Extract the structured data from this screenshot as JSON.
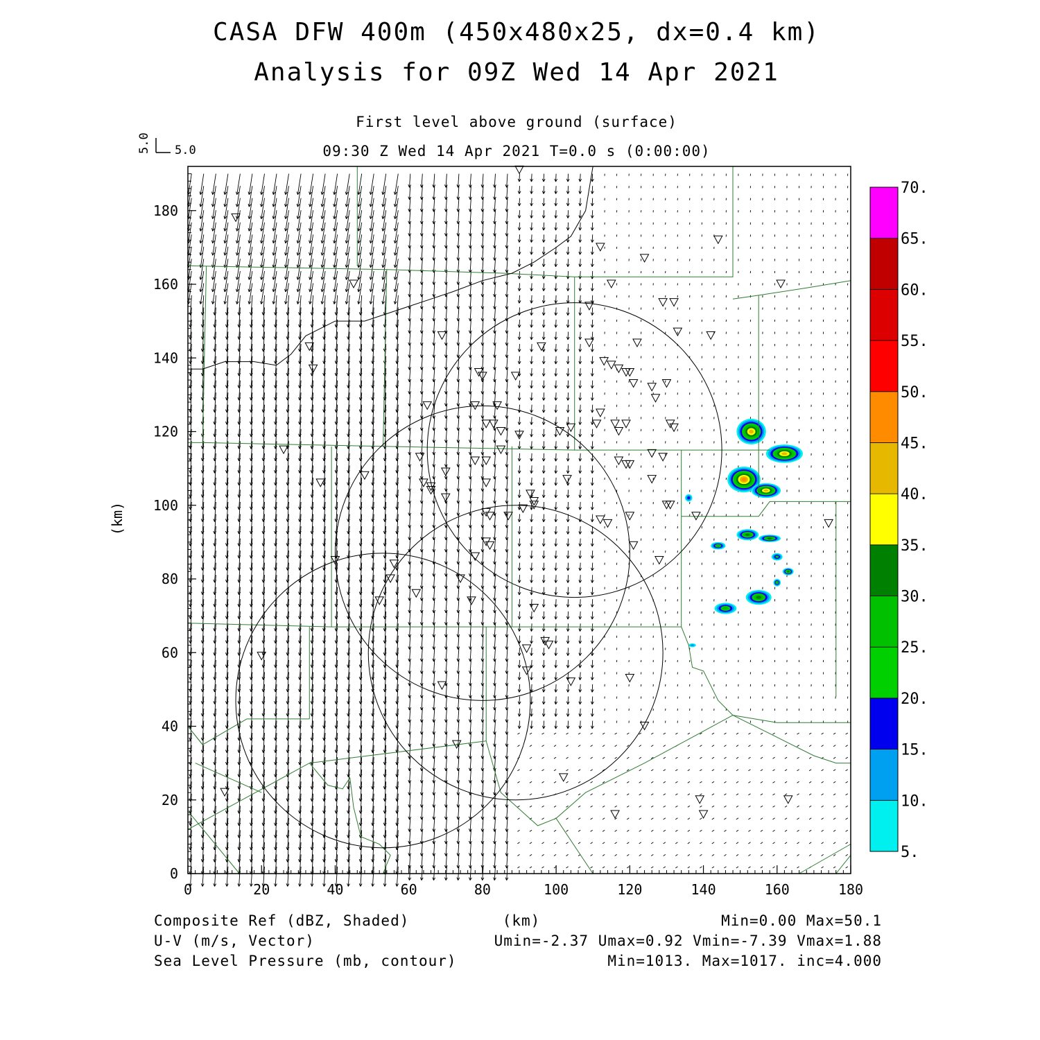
{
  "title": {
    "line1": "CASA DFW 400m (450x480x25, dx=0.4 km)",
    "line2": "Analysis for 09Z Wed 14 Apr 2021"
  },
  "subtitle": {
    "level": "First level above ground (surface)",
    "time": "09:30 Z Wed 14 Apr 2021   T=0.0 s (0:00:00)"
  },
  "vector_key": {
    "u_label": "5.0",
    "v_label": "5.0"
  },
  "axes": {
    "ylabel": "(km)",
    "xlabel": "(km)",
    "xlim": [
      0,
      180
    ],
    "ylim": [
      0,
      192
    ],
    "xticks": [
      "0",
      "20",
      "40",
      "60",
      "80",
      "100",
      "120",
      "140",
      "160",
      "180"
    ],
    "yticks": [
      "0",
      "20",
      "40",
      "60",
      "80",
      "100",
      "120",
      "140",
      "160",
      "180"
    ]
  },
  "colorbar": {
    "labels": [
      "5.",
      "10.",
      "15.",
      "20.",
      "25.",
      "30.",
      "35.",
      "40.",
      "45.",
      "50.",
      "55.",
      "60.",
      "65.",
      "70."
    ],
    "colors": [
      "#00f0f0",
      "#00a0f0",
      "#0000ee",
      "#00d000",
      "#00c000",
      "#008000",
      "#ffff00",
      "#e6b800",
      "#ff8c00",
      "#ff0000",
      "#dd0000",
      "#c00000",
      "#ff00ff"
    ]
  },
  "footer": {
    "left1": "Composite Ref (dBZ, Shaded)",
    "left2": "U-V (m/s, Vector)",
    "left3": "Sea Level Pressure (mb, contour)",
    "center_unit": "(km)",
    "right1": "Min=0.00 Max=50.1",
    "right2": "Umin=-2.37 Umax=0.92 Vmin=-7.39 Vmax=1.88",
    "right3": "Min=1013. Max=1017. inc=4.000"
  },
  "chart_data": {
    "type": "map",
    "title": "CASA DFW 400m (450x480x25, dx=0.4 km)",
    "subtitle": "Analysis for 09Z Wed 14 Apr 2021",
    "fields": {
      "shaded": "Composite Ref (dBZ, Shaded)",
      "vector": "U-V (m/s, Vector)",
      "contour": "Sea Level Pressure (mb, contour)"
    },
    "reflectivity_range": [
      0.0,
      50.1
    ],
    "u_range": [
      -2.37,
      0.92
    ],
    "v_range": [
      -7.39,
      1.88
    ],
    "slp_range": [
      1013,
      1017
    ],
    "slp_inc": 4.0,
    "radar_rings": [
      {
        "center_km": [
          105,
          115
        ],
        "radius_km": 40
      },
      {
        "center_km": [
          80,
          87
        ],
        "radius_km": 40
      },
      {
        "center_km": [
          89,
          60
        ],
        "radius_km": 40
      },
      {
        "center_km": [
          53,
          47
        ],
        "radius_km": 40
      }
    ],
    "slp_contour_km": [
      [
        0,
        137
      ],
      [
        4,
        137
      ],
      [
        10,
        139
      ],
      [
        18,
        139
      ],
      [
        24,
        138
      ],
      [
        28,
        141
      ],
      [
        32,
        146
      ],
      [
        40,
        150
      ],
      [
        48,
        150
      ],
      [
        54,
        152
      ],
      [
        60,
        154
      ],
      [
        66,
        156
      ],
      [
        72,
        158
      ],
      [
        80,
        161
      ],
      [
        88,
        163
      ],
      [
        94,
        166
      ],
      [
        100,
        170
      ],
      [
        104,
        173
      ],
      [
        108,
        180
      ],
      [
        110,
        192
      ]
    ],
    "county_lines_km": [
      [
        [
          0,
          165
        ],
        [
          54,
          164
        ],
        [
          86,
          163
        ],
        [
          105,
          162
        ],
        [
          148,
          162
        ],
        [
          148,
          192
        ]
      ],
      [
        [
          148,
          156
        ],
        [
          155,
          157
        ],
        [
          168,
          159
        ],
        [
          180,
          161
        ]
      ],
      [
        [
          5,
          165
        ],
        [
          4,
          117
        ],
        [
          0,
          117
        ]
      ],
      [
        [
          54,
          164
        ],
        [
          53,
          116
        ]
      ],
      [
        [
          105,
          162
        ],
        [
          105,
          115
        ]
      ],
      [
        [
          4,
          117
        ],
        [
          53,
          116
        ],
        [
          105,
          115
        ],
        [
          158,
          115
        ]
      ],
      [
        [
          155,
          157
        ],
        [
          155,
          102
        ]
      ],
      [
        [
          46,
          165
        ],
        [
          46,
          192
        ]
      ],
      [
        [
          39,
          116
        ],
        [
          39,
          67
        ]
      ],
      [
        [
          88,
          116
        ],
        [
          88,
          67
        ]
      ],
      [
        [
          134,
          115
        ],
        [
          134,
          67
        ]
      ],
      [
        [
          0,
          68
        ],
        [
          39,
          67
        ],
        [
          88,
          67
        ],
        [
          134,
          67
        ]
      ],
      [
        [
          33,
          67
        ],
        [
          33,
          42
        ]
      ],
      [
        [
          16,
          42
        ],
        [
          33,
          42
        ]
      ],
      [
        [
          81,
          67
        ],
        [
          81,
          36
        ]
      ],
      [
        [
          134,
          97
        ],
        [
          148,
          97
        ],
        [
          155,
          97
        ],
        [
          158,
          101
        ],
        [
          176,
          101
        ],
        [
          180,
          101
        ]
      ],
      [
        [
          176,
          101
        ],
        [
          176,
          48
        ]
      ],
      [
        [
          0,
          40
        ],
        [
          4,
          35
        ],
        [
          16,
          42
        ]
      ],
      [
        [
          4,
          35
        ],
        [
          0,
          40
        ]
      ],
      [
        [
          0,
          12
        ],
        [
          33,
          30
        ],
        [
          81,
          36
        ]
      ],
      [
        [
          0,
          17
        ],
        [
          14,
          0
        ]
      ],
      [
        [
          2,
          30
        ],
        [
          20,
          22
        ]
      ],
      [
        [
          33,
          30
        ],
        [
          38,
          24
        ],
        [
          42,
          23
        ],
        [
          44,
          26
        ],
        [
          45,
          18
        ],
        [
          47,
          10
        ],
        [
          52,
          8
        ],
        [
          55,
          5
        ],
        [
          53,
          0
        ]
      ],
      [
        [
          81,
          36
        ],
        [
          85,
          22
        ],
        [
          95,
          13
        ],
        [
          100,
          15
        ],
        [
          108,
          22
        ],
        [
          124,
          30
        ],
        [
          148,
          43
        ],
        [
          158,
          38
        ],
        [
          170,
          32
        ],
        [
          176,
          30
        ],
        [
          180,
          30
        ]
      ],
      [
        [
          100,
          15
        ],
        [
          110,
          0
        ]
      ],
      [
        [
          134,
          67
        ],
        [
          136,
          62
        ],
        [
          137,
          56
        ],
        [
          140,
          55
        ],
        [
          144,
          47
        ],
        [
          148,
          43
        ],
        [
          160,
          41
        ],
        [
          180,
          41
        ]
      ],
      [
        [
          166,
          0
        ],
        [
          180,
          8
        ]
      ],
      [
        [
          176,
          0
        ],
        [
          180,
          5
        ]
      ]
    ],
    "sites_km": [
      [
        90,
        191
      ],
      [
        13,
        178
      ],
      [
        112,
        170
      ],
      [
        124,
        167
      ],
      [
        144,
        172
      ],
      [
        45,
        160
      ],
      [
        115,
        160
      ],
      [
        161,
        160
      ],
      [
        109,
        154
      ],
      [
        129,
        155
      ],
      [
        132,
        155
      ],
      [
        133,
        147
      ],
      [
        142,
        146
      ],
      [
        33,
        143
      ],
      [
        69,
        146
      ],
      [
        96,
        143
      ],
      [
        109,
        144
      ],
      [
        122,
        144
      ],
      [
        34,
        137
      ],
      [
        79,
        136
      ],
      [
        80,
        135
      ],
      [
        89,
        135
      ],
      [
        113,
        139
      ],
      [
        115,
        138
      ],
      [
        117,
        137
      ],
      [
        119,
        136
      ],
      [
        120,
        136
      ],
      [
        121,
        133
      ],
      [
        126,
        132
      ],
      [
        127,
        129
      ],
      [
        130,
        133
      ],
      [
        65,
        127
      ],
      [
        78,
        127
      ],
      [
        84,
        127
      ],
      [
        112,
        125
      ],
      [
        81,
        122
      ],
      [
        83,
        122
      ],
      [
        85,
        120
      ],
      [
        90,
        119
      ],
      [
        101,
        120
      ],
      [
        104,
        121
      ],
      [
        111,
        122
      ],
      [
        116,
        122
      ],
      [
        117,
        120
      ],
      [
        119,
        122
      ],
      [
        131,
        122
      ],
      [
        132,
        121
      ],
      [
        26,
        115
      ],
      [
        85,
        115
      ],
      [
        126,
        114
      ],
      [
        129,
        113
      ],
      [
        63,
        113
      ],
      [
        70,
        109
      ],
      [
        78,
        112
      ],
      [
        81,
        112
      ],
      [
        117,
        112
      ],
      [
        119,
        111
      ],
      [
        120,
        111
      ],
      [
        36,
        106
      ],
      [
        48,
        108
      ],
      [
        64,
        106
      ],
      [
        66,
        105
      ],
      [
        66,
        104
      ],
      [
        70,
        102
      ],
      [
        81,
        106
      ],
      [
        93,
        103
      ],
      [
        94,
        101
      ],
      [
        94,
        100
      ],
      [
        103,
        107
      ],
      [
        126,
        107
      ],
      [
        130,
        100
      ],
      [
        131,
        100
      ],
      [
        81,
        98
      ],
      [
        82,
        97
      ],
      [
        87,
        97
      ],
      [
        91,
        99
      ],
      [
        112,
        96
      ],
      [
        114,
        95
      ],
      [
        120,
        97
      ],
      [
        138,
        97
      ],
      [
        174,
        95
      ],
      [
        81,
        90
      ],
      [
        78,
        86
      ],
      [
        82,
        89
      ],
      [
        121,
        89
      ],
      [
        128,
        85
      ],
      [
        40,
        85
      ],
      [
        56,
        84
      ],
      [
        55,
        80
      ],
      [
        74,
        80
      ],
      [
        62,
        76
      ],
      [
        52,
        74
      ],
      [
        77,
        74
      ],
      [
        94,
        72
      ],
      [
        20,
        59
      ],
      [
        92,
        61
      ],
      [
        97,
        63
      ],
      [
        98,
        62
      ],
      [
        92,
        55
      ],
      [
        69,
        51
      ],
      [
        104,
        52
      ],
      [
        120,
        53
      ],
      [
        124,
        40
      ],
      [
        73,
        35
      ],
      [
        102,
        26
      ],
      [
        10,
        22
      ],
      [
        139,
        20
      ],
      [
        163,
        20
      ],
      [
        140,
        16
      ],
      [
        116,
        16
      ]
    ],
    "echoes_km": [
      {
        "center": [
          153,
          120
        ],
        "size": [
          8,
          7
        ],
        "peak_dbz": 40
      },
      {
        "center": [
          162,
          114
        ],
        "size": [
          10,
          5
        ],
        "peak_dbz": 40
      },
      {
        "center": [
          151,
          107
        ],
        "size": [
          9,
          7
        ],
        "peak_dbz": 45
      },
      {
        "center": [
          157,
          104
        ],
        "size": [
          8,
          4
        ],
        "peak_dbz": 40
      },
      {
        "center": [
          136,
          102
        ],
        "size": [
          2,
          2
        ],
        "peak_dbz": 15
      },
      {
        "center": [
          152,
          92
        ],
        "size": [
          6,
          3
        ],
        "peak_dbz": 30
      },
      {
        "center": [
          158,
          91
        ],
        "size": [
          6,
          2
        ],
        "peak_dbz": 30
      },
      {
        "center": [
          144,
          89
        ],
        "size": [
          4,
          2
        ],
        "peak_dbz": 25
      },
      {
        "center": [
          160,
          86
        ],
        "size": [
          3,
          2
        ],
        "peak_dbz": 20
      },
      {
        "center": [
          163,
          82
        ],
        "size": [
          3,
          2
        ],
        "peak_dbz": 30
      },
      {
        "center": [
          155,
          75
        ],
        "size": [
          7,
          4
        ],
        "peak_dbz": 30
      },
      {
        "center": [
          146,
          72
        ],
        "size": [
          6,
          3
        ],
        "peak_dbz": 25
      },
      {
        "center": [
          160,
          79
        ],
        "size": [
          2,
          2
        ],
        "peak_dbz": 25
      },
      {
        "center": [
          137,
          62
        ],
        "size": [
          2,
          1
        ],
        "peak_dbz": 10
      }
    ]
  }
}
